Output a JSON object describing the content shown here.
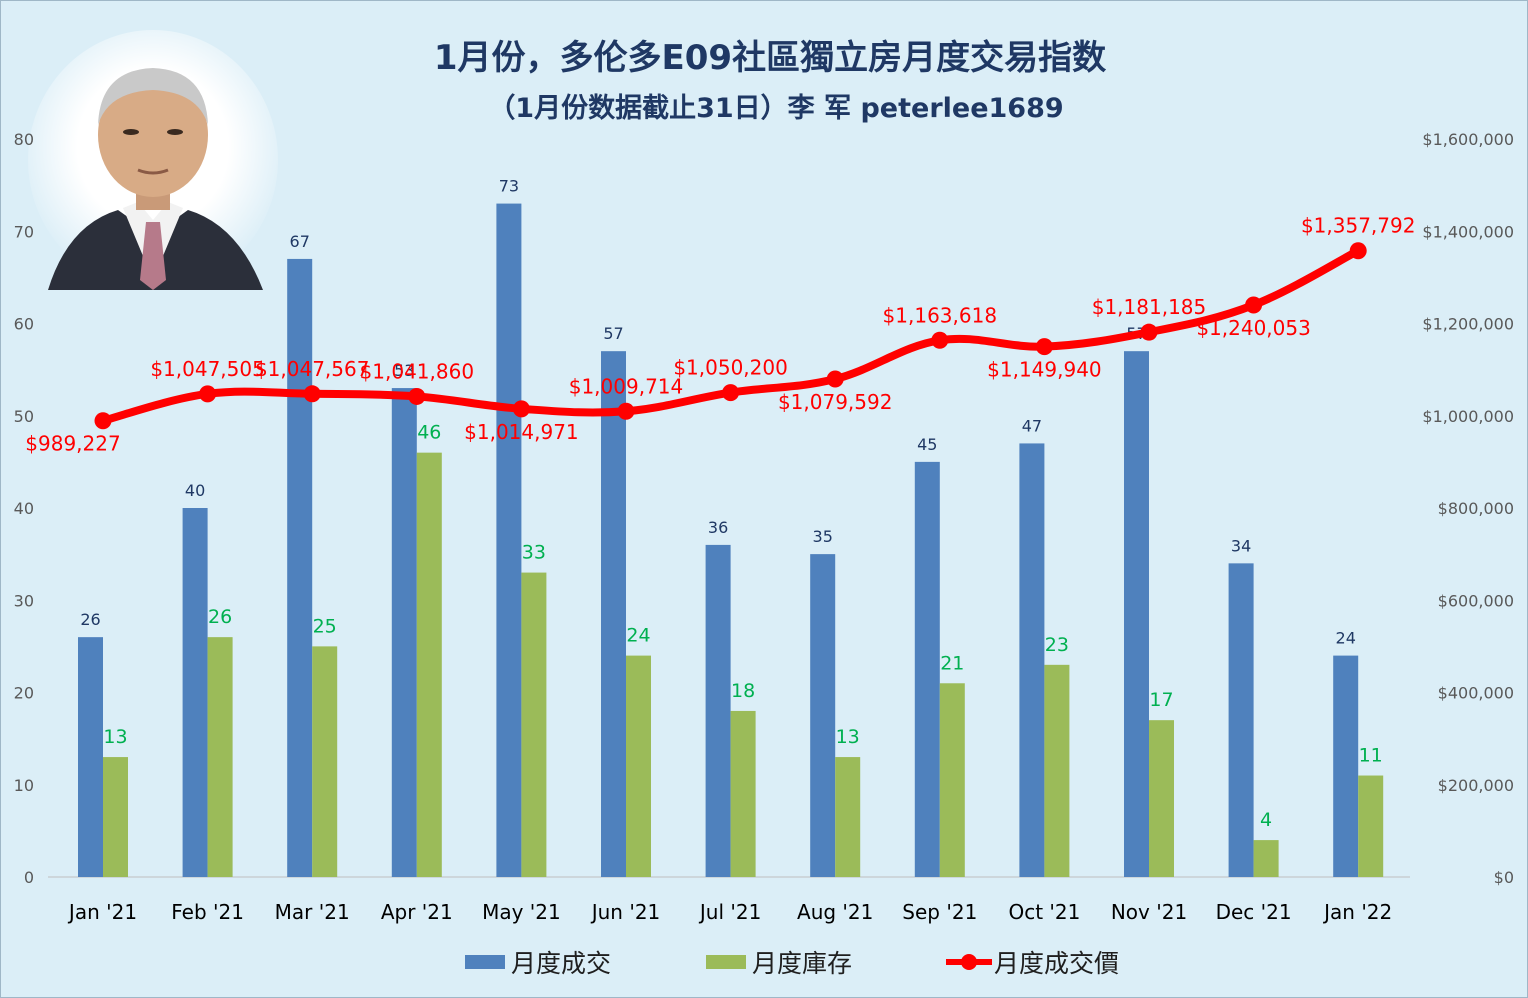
{
  "title": "1月份，多伦多E09社區獨立房月度交易指数",
  "subtitle": "（1月份数据截止31日）李 军 peterlee1689",
  "colors": {
    "bar_sales": "#4f81bd",
    "bar_inventory": "#9bbb59",
    "line_price": "#ff0000",
    "background": "#dbeef7"
  },
  "chart_data": {
    "type": "bar",
    "categories": [
      "Jan '21",
      "Feb '21",
      "Mar '21",
      "Apr '21",
      "May '21",
      "Jun '21",
      "Jul '21",
      "Aug '21",
      "Sep '21",
      "Oct '21",
      "Nov '21",
      "Dec '21",
      "Jan '22"
    ],
    "series": [
      {
        "name": "月度成交",
        "type": "bar",
        "axis": "left",
        "values": [
          26,
          40,
          67,
          53,
          73,
          57,
          36,
          35,
          45,
          47,
          57,
          34,
          24
        ]
      },
      {
        "name": "月度庫存",
        "type": "bar",
        "axis": "left",
        "values": [
          13,
          26,
          25,
          46,
          33,
          24,
          18,
          13,
          21,
          23,
          17,
          4,
          11
        ]
      },
      {
        "name": "月度成交價",
        "type": "line",
        "axis": "right",
        "values": [
          989227,
          1047505,
          1047567,
          1041860,
          1014971,
          1009714,
          1050200,
          1079592,
          1163618,
          1149940,
          1181185,
          1240053,
          1357792
        ],
        "labels": [
          "$989,227",
          "$1,047,505",
          "$1,047,567",
          "$1,041,860",
          "$1,014,971",
          "$1,009,714",
          "$1,050,200",
          "$1,079,592",
          "$1,163,618",
          "$1,149,940",
          "$1,181,185",
          "$1,240,053",
          "$1,357,792"
        ]
      }
    ],
    "left_axis": {
      "ylim": [
        0,
        80
      ],
      "ticks": [
        "0",
        "10",
        "20",
        "30",
        "40",
        "50",
        "60",
        "70",
        "80"
      ]
    },
    "right_axis": {
      "ylim": [
        0,
        1600000
      ],
      "ticks": [
        "$0",
        "$200,000",
        "$400,000",
        "$600,000",
        "$800,000",
        "$1,000,000",
        "$1,200,000",
        "$1,400,000",
        "$1,600,000"
      ]
    },
    "grid": false,
    "legend_position": "bottom"
  },
  "legend": [
    {
      "label": "月度成交",
      "color": "#4f81bd",
      "kind": "bar"
    },
    {
      "label": "月度庫存",
      "color": "#9bbb59",
      "kind": "bar"
    },
    {
      "label": "月度成交價",
      "color": "#ff0000",
      "kind": "line"
    }
  ],
  "photo": {
    "icon": "portrait-photo-icon"
  }
}
